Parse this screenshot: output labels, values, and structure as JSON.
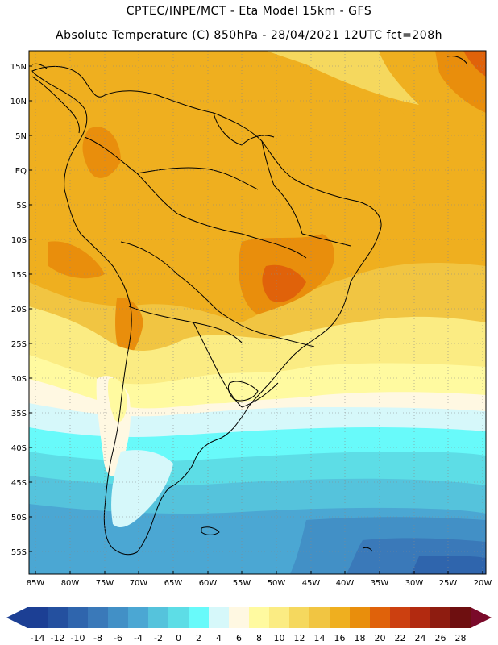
{
  "header": {
    "line1": "CPTEC/INPE/MCT -   Eta Model 15km - GFS",
    "line2": "Absolute Temperature (C) 850hPa - 28/04/2021 12UTC fct=208h"
  },
  "map": {
    "lat_labels": [
      "15N",
      "10N",
      "5N",
      "EQ",
      "5S",
      "10S",
      "15S",
      "20S",
      "25S",
      "30S",
      "35S",
      "40S",
      "45S",
      "50S",
      "55S"
    ],
    "lon_labels": [
      "85W",
      "80W",
      "75W",
      "70W",
      "65W",
      "60W",
      "55W",
      "50W",
      "45W",
      "40W",
      "35W",
      "30W",
      "25W",
      "20W"
    ]
  },
  "colorbar": {
    "labels": [
      "-14",
      "-12",
      "-10",
      "-8",
      "-6",
      "-4",
      "-2",
      "0",
      "2",
      "4",
      "6",
      "8",
      "10",
      "12",
      "14",
      "16",
      "18",
      "20",
      "22",
      "24",
      "26",
      "28"
    ],
    "colors": [
      "#1c3f94",
      "#24509f",
      "#2f65ad",
      "#3a79b9",
      "#4290c6",
      "#4ba7d3",
      "#55c3dc",
      "#5ddde6",
      "#68fafa",
      "#d6f8fa",
      "#fff8e2",
      "#fffaa0",
      "#fbec83",
      "#f5d85e",
      "#f1c542",
      "#efaf1f",
      "#e98e0c",
      "#e0620a",
      "#cc4010",
      "#b22a10",
      "#8e1c10",
      "#6e0f10"
    ],
    "left_arrow_color": "#1c3f94",
    "right_arrow_color": "#7a0a2a"
  }
}
